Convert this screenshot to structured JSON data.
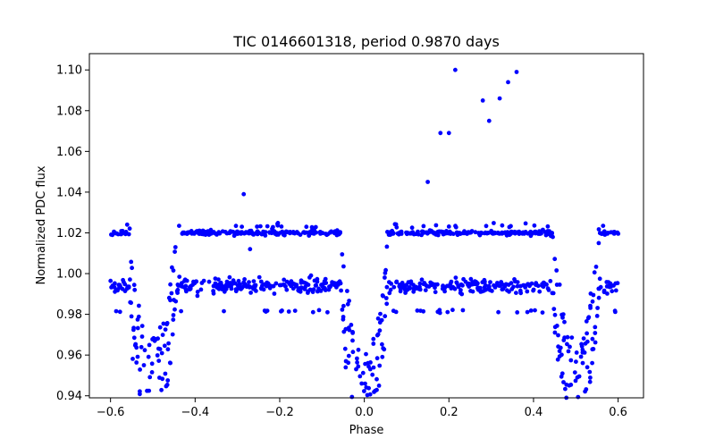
{
  "chart_data": {
    "type": "scatter",
    "title": "TIC 0146601318, period 0.9870 days",
    "xlabel": "Phase",
    "ylabel": "Normalized PDC flux",
    "xlim": [
      -0.65,
      0.66
    ],
    "ylim": [
      0.939,
      1.108
    ],
    "xticks": [
      "−0.6",
      "−0.4",
      "−0.2",
      "0.0",
      "0.2",
      "0.4",
      "0.6"
    ],
    "xtick_values": [
      -0.6,
      -0.4,
      -0.2,
      0.0,
      0.2,
      0.4,
      0.6
    ],
    "yticks": [
      "0.94",
      "0.96",
      "0.98",
      "1.00",
      "1.02",
      "1.04",
      "1.06",
      "1.08",
      "1.10"
    ],
    "ytick_values": [
      0.94,
      0.96,
      0.98,
      1.0,
      1.02,
      1.04,
      1.06,
      1.08,
      1.1
    ],
    "grid": false,
    "legend": "none",
    "series": [
      {
        "color": "#0000ff",
        "shape_description": "Eclipsing-binary-like light curve: two flux bands near 1.02 and 0.995 between eclipses, primary dips to ~0.946 at phase 0.0 and ~0.955 at phases ±0.5, plus sparse outliers above 1.04",
        "outliers": [
          {
            "x": -0.285,
            "y": 1.039
          },
          {
            "x": -0.27,
            "y": 1.012
          },
          {
            "x": 0.15,
            "y": 1.045
          },
          {
            "x": 0.18,
            "y": 1.069
          },
          {
            "x": 0.2,
            "y": 1.069
          },
          {
            "x": 0.215,
            "y": 1.1
          },
          {
            "x": 0.28,
            "y": 1.085
          },
          {
            "x": 0.295,
            "y": 1.075
          },
          {
            "x": 0.32,
            "y": 1.086
          },
          {
            "x": 0.34,
            "y": 1.094
          },
          {
            "x": 0.36,
            "y": 1.099
          }
        ]
      }
    ]
  },
  "colors": {
    "marker": "#0000ff",
    "axes": "#000000",
    "background": "#ffffff"
  }
}
